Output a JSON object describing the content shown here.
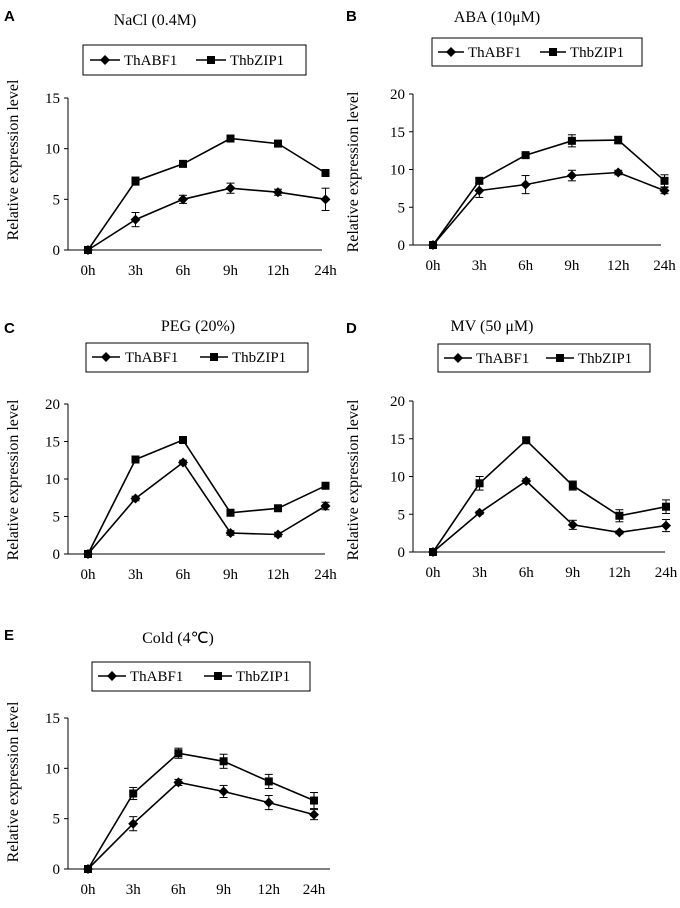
{
  "chart_data": [
    {
      "panel": "A",
      "type": "line",
      "title": "NaCl (0.4M)",
      "ylabel": "Relative expression level",
      "xlabel": "",
      "categories": [
        "0h",
        "3h",
        "6h",
        "9h",
        "12h",
        "24h"
      ],
      "ylim": [
        0,
        15
      ],
      "yticks": [
        0,
        5,
        10,
        15
      ],
      "series": [
        {
          "name": "ThABF1",
          "marker": "diamond",
          "values": [
            0,
            3.0,
            5.0,
            6.1,
            5.7,
            5.0
          ],
          "errors": [
            0.1,
            0.7,
            0.4,
            0.5,
            0.3,
            1.1
          ]
        },
        {
          "name": "ThbZIP1",
          "marker": "square",
          "values": [
            0,
            6.8,
            8.5,
            11.0,
            10.5,
            7.6
          ],
          "errors": [
            0.1,
            0.4,
            0.3,
            0.2,
            0.2,
            0.3
          ]
        }
      ]
    },
    {
      "panel": "B",
      "type": "line",
      "title": "ABA (10μM)",
      "ylabel": "Relative expression level",
      "xlabel": "",
      "categories": [
        "0h",
        "3h",
        "6h",
        "9h",
        "12h",
        "24h"
      ],
      "ylim": [
        0,
        20
      ],
      "yticks": [
        0,
        5,
        10,
        15,
        20
      ],
      "series": [
        {
          "name": "ThABF1",
          "marker": "diamond",
          "values": [
            0,
            7.2,
            8.0,
            9.2,
            9.6,
            7.2
          ],
          "errors": [
            0.1,
            0.9,
            1.2,
            0.7,
            0.3,
            0.4
          ]
        },
        {
          "name": "ThbZIP1",
          "marker": "square",
          "values": [
            0,
            8.5,
            11.9,
            13.8,
            13.9,
            8.5
          ],
          "errors": [
            0.1,
            0.3,
            0.3,
            0.8,
            0.5,
            0.8
          ]
        }
      ]
    },
    {
      "panel": "C",
      "type": "line",
      "title": "PEG (20%)",
      "ylabel": "Relative expression level",
      "xlabel": "",
      "categories": [
        "0h",
        "3h",
        "6h",
        "9h",
        "12h",
        "24h"
      ],
      "ylim": [
        0,
        20
      ],
      "yticks": [
        0,
        5,
        10,
        15,
        20
      ],
      "series": [
        {
          "name": "ThABF1",
          "marker": "diamond",
          "values": [
            0,
            7.4,
            12.2,
            2.8,
            2.6,
            6.4
          ],
          "errors": [
            0.1,
            0.3,
            0.3,
            0.3,
            0.3,
            0.5
          ]
        },
        {
          "name": "ThbZIP1",
          "marker": "square",
          "values": [
            0,
            12.6,
            15.2,
            5.5,
            6.1,
            9.1
          ],
          "errors": [
            0.1,
            0.3,
            0.3,
            0.3,
            0.3,
            0.3
          ]
        }
      ]
    },
    {
      "panel": "D",
      "type": "line",
      "title": "MV (50 μM)",
      "ylabel": "Relative expression level",
      "xlabel": "",
      "categories": [
        "0h",
        "3h",
        "6h",
        "9h",
        "12h",
        "24h"
      ],
      "ylim": [
        0,
        20
      ],
      "yticks": [
        0,
        5,
        10,
        15,
        20
      ],
      "series": [
        {
          "name": "ThABF1",
          "marker": "diamond",
          "values": [
            0,
            5.2,
            9.4,
            3.6,
            2.6,
            3.5
          ],
          "errors": [
            0.1,
            0.2,
            0.3,
            0.6,
            0.2,
            0.8
          ]
        },
        {
          "name": "ThbZIP1",
          "marker": "square",
          "values": [
            0,
            9.1,
            14.8,
            8.8,
            4.8,
            6.0
          ],
          "errors": [
            0.1,
            0.9,
            0.3,
            0.6,
            0.8,
            0.9
          ]
        }
      ]
    },
    {
      "panel": "E",
      "type": "line",
      "title": "Cold (4℃)",
      "ylabel": "Relative expression level",
      "xlabel": "",
      "categories": [
        "0h",
        "3h",
        "6h",
        "9h",
        "12h",
        "24h"
      ],
      "ylim": [
        0,
        15
      ],
      "yticks": [
        0,
        5,
        10,
        15
      ],
      "series": [
        {
          "name": "ThABF1",
          "marker": "diamond",
          "values": [
            0,
            4.5,
            8.6,
            7.7,
            6.6,
            5.4
          ],
          "errors": [
            0.1,
            0.7,
            0.3,
            0.6,
            0.7,
            0.5
          ]
        },
        {
          "name": "ThbZIP1",
          "marker": "square",
          "values": [
            0,
            7.5,
            11.5,
            10.7,
            8.7,
            6.8
          ],
          "errors": [
            0.1,
            0.6,
            0.5,
            0.7,
            0.7,
            0.8
          ]
        }
      ]
    }
  ]
}
